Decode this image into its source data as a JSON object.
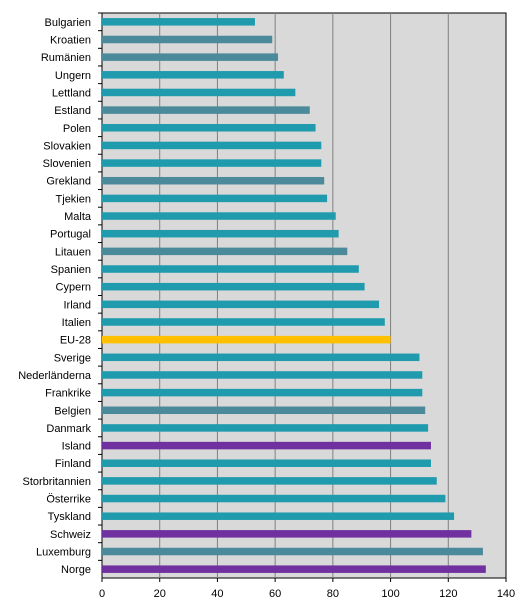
{
  "chart_data": {
    "type": "bar",
    "orientation": "horizontal",
    "title": "",
    "xlabel": "",
    "ylabel": "",
    "xlim": [
      0,
      140
    ],
    "xticks": [
      0,
      20,
      40,
      60,
      80,
      100,
      120,
      140
    ],
    "grid": true,
    "legend": "none",
    "plot_background": "#d9d9d9",
    "colors": {
      "teal": "#1f9bad",
      "grey_blue": "#4a8a9b",
      "yellow": "#ffc000",
      "purple": "#7030a0"
    },
    "categories": [
      "Bulgarien",
      "Kroatien",
      "Rumänien",
      "Ungern",
      "Lettland",
      "Estland",
      "Polen",
      "Slovakien",
      "Slovenien",
      "Grekland",
      "Tjekien",
      "Malta",
      "Portugal",
      "Litauen",
      "Spanien",
      "Cypern",
      "Irland",
      "Italien",
      "EU-28",
      "Sverige",
      "Nederländerna",
      "Frankrike",
      "Belgien",
      "Danmark",
      "Island",
      "Finland",
      "Storbritannien",
      "Österrike",
      "Tyskland",
      "Schweiz",
      "Luxemburg",
      "Norge"
    ],
    "values": [
      53,
      59,
      61,
      63,
      67,
      72,
      74,
      76,
      76,
      77,
      78,
      81,
      82,
      85,
      89,
      91,
      96,
      98,
      100,
      110,
      111,
      111,
      112,
      113,
      114,
      114,
      116,
      119,
      122,
      128,
      132,
      133
    ],
    "bar_colors": [
      "teal",
      "grey_blue",
      "grey_blue",
      "teal",
      "teal",
      "grey_blue",
      "teal",
      "teal",
      "teal",
      "grey_blue",
      "teal",
      "teal",
      "teal",
      "grey_blue",
      "teal",
      "teal",
      "teal",
      "teal",
      "yellow",
      "teal",
      "teal",
      "teal",
      "grey_blue",
      "teal",
      "purple",
      "teal",
      "teal",
      "teal",
      "teal",
      "purple",
      "grey_blue",
      "purple"
    ]
  }
}
